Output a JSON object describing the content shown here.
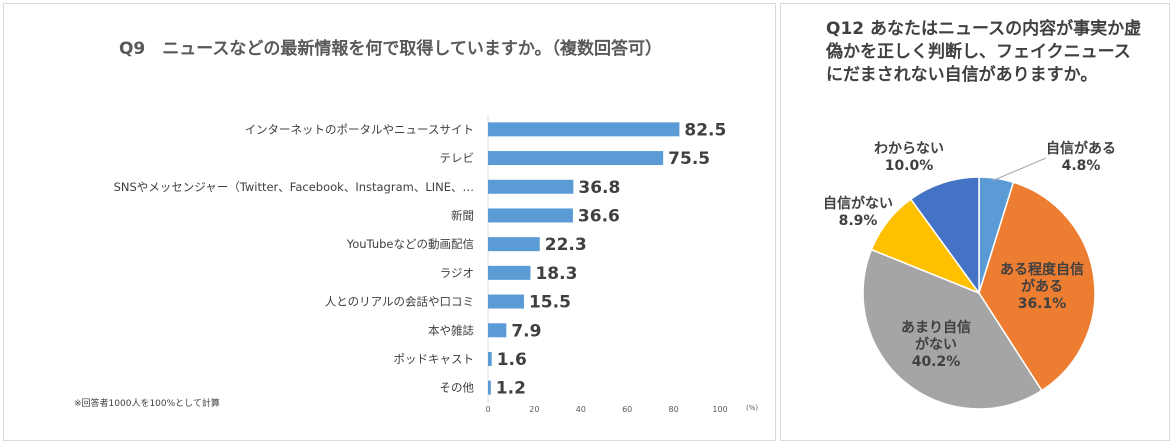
{
  "colors": {
    "bar": "#5b9bd5",
    "pie": [
      "#5b9bd5",
      "#ed7d31",
      "#a5a5a5",
      "#ffc000",
      "#4472c4"
    ]
  },
  "q9": {
    "title": "Q9　ニュースなどの最新情報を何で取得していますか。（複数回答可）",
    "note": "※回答者1000人を100%として計算"
  },
  "q12": {
    "title": "Q12 あなたはニュースの内容が事実か虚偽かを正しく判断し、フェイクニュースにだまされない自信がありますか。"
  },
  "chart_data": [
    {
      "type": "bar",
      "orientation": "horizontal",
      "title": "Q9　ニュースなどの最新情報を何で取得していますか。（複数回答可）",
      "categories": [
        "インターネットのポータルやニュースサイト",
        "テレビ",
        "SNSやメッセンジャー（Twitter、Facebook、Instagram、LINE、…",
        "新聞",
        "YouTubeなどの動画配信",
        "ラジオ",
        "人とのリアルの会話や口コミ",
        "本や雑誌",
        "ポッドキャスト",
        "その他"
      ],
      "values": [
        82.5,
        75.5,
        36.8,
        36.6,
        22.3,
        18.3,
        15.5,
        7.9,
        1.6,
        1.2
      ],
      "value_labels": [
        "82.5",
        "75.5",
        "36.8",
        "36.6",
        "22.3",
        "18.3",
        "15.5",
        "7.9",
        "1.6",
        "1.2"
      ],
      "xlim": [
        0,
        100
      ],
      "xticks": [
        "0",
        "20",
        "40",
        "60",
        "80",
        "100"
      ],
      "xunit": "(%)"
    },
    {
      "type": "pie",
      "title": "Q12 あなたはニュースの内容が事実か虚偽かを正しく判断し、フェイクニュースにだまされない自信がありますか。",
      "slices": [
        {
          "label": "自信がある",
          "value": 4.8,
          "pct": "4.8%"
        },
        {
          "label": "ある程度自信がある",
          "value": 36.1,
          "pct": "36.1%"
        },
        {
          "label": "あまり自信がない",
          "value": 40.2,
          "pct": "40.2%"
        },
        {
          "label": "自信がない",
          "value": 8.9,
          "pct": "8.9%"
        },
        {
          "label": "わからない",
          "value": 10.0,
          "pct": "10.0%"
        }
      ]
    }
  ]
}
